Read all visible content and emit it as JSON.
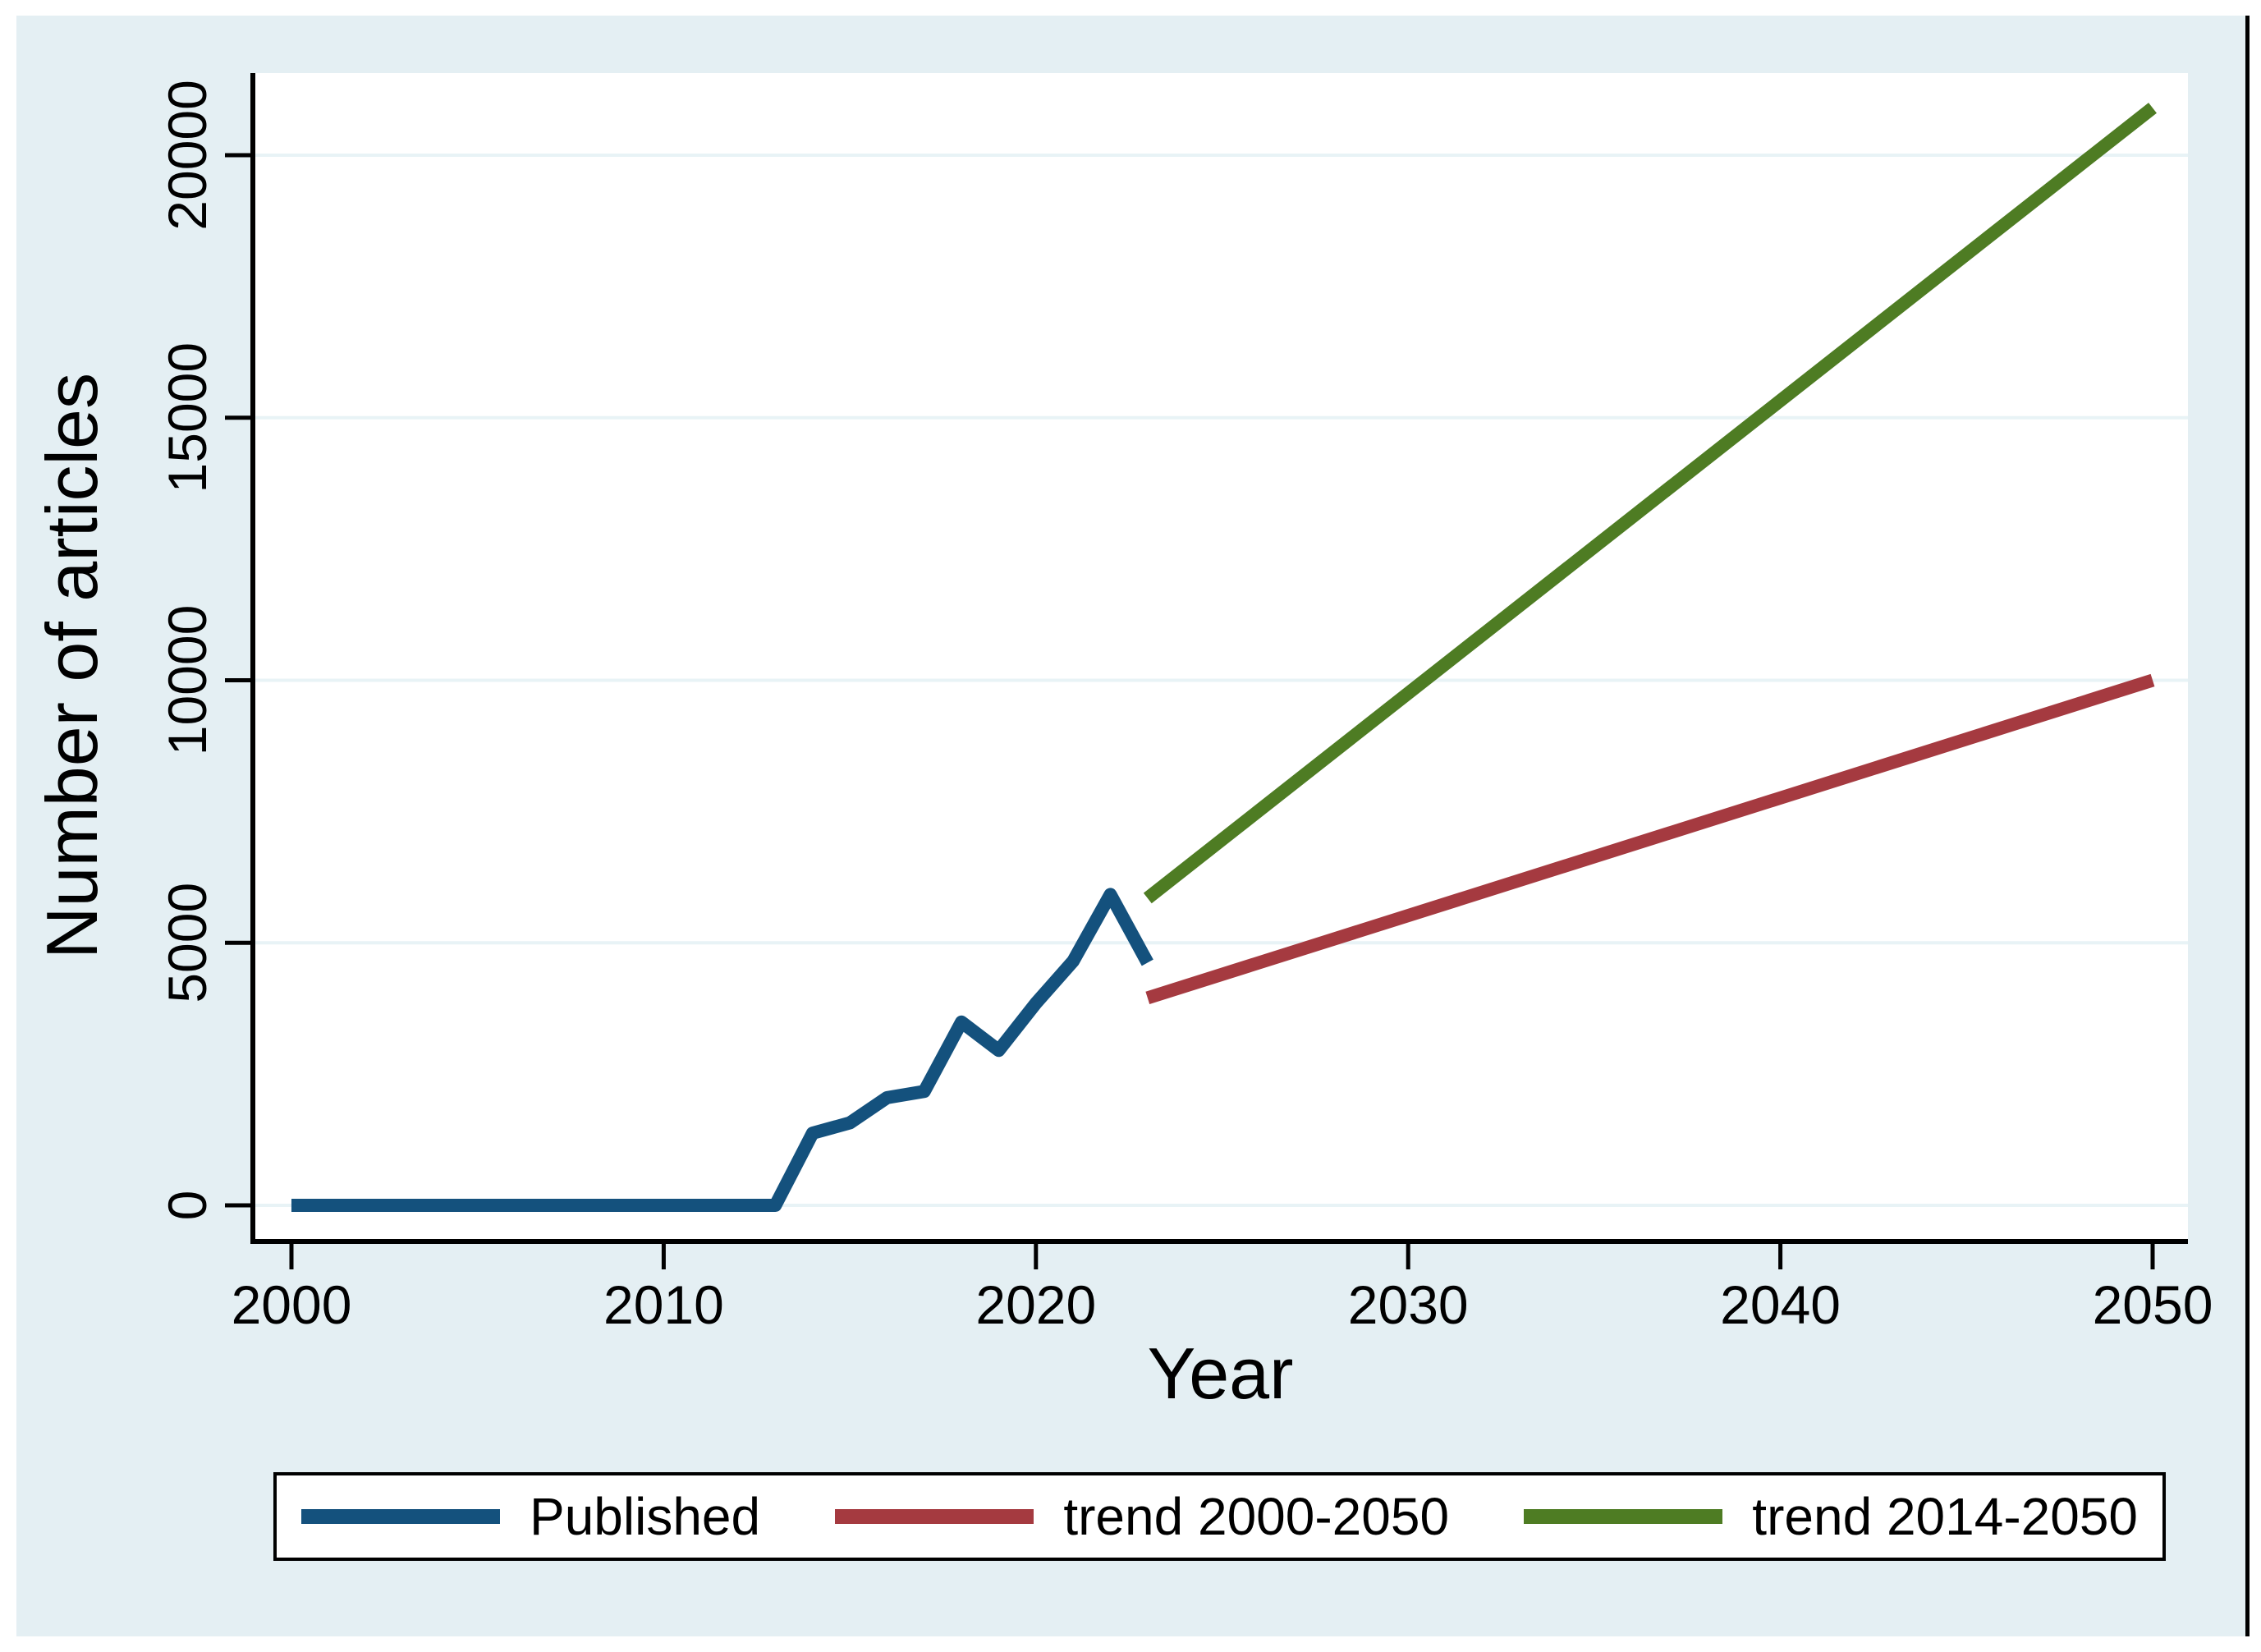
{
  "figure": {
    "background_color": "#e4eff3",
    "plot_background_color": "#ffffff",
    "gridline_color": "#e8f3f6",
    "axis_color": "#000000",
    "text_color": "#000000"
  },
  "chart_data": {
    "type": "line",
    "title": "",
    "xlabel": "Year",
    "ylabel": "Number of articles",
    "x_ticks": [
      2000,
      2010,
      2020,
      2030,
      2040,
      2050
    ],
    "y_ticks": [
      0,
      5000,
      10000,
      15000,
      20000
    ],
    "xlim": [
      1999,
      2051
    ],
    "ylim": [
      -700,
      21550
    ],
    "grid": "horizontal-only",
    "legend_position": "bottom-outside",
    "series": [
      {
        "name": "Published",
        "color": "#14517d",
        "x": [
          2000,
          2001,
          2002,
          2003,
          2004,
          2005,
          2006,
          2007,
          2008,
          2009,
          2010,
          2011,
          2012,
          2013,
          2014,
          2015,
          2016,
          2017,
          2018,
          2019,
          2020,
          2021,
          2022,
          2023
        ],
        "y": [
          0,
          0,
          0,
          0,
          0,
          0,
          0,
          0,
          0,
          0,
          0,
          0,
          0,
          0,
          1375,
          1570,
          2050,
          2170,
          3490,
          2950,
          3850,
          4650,
          5920,
          4620
        ]
      },
      {
        "name": "trend 2000-2050",
        "color": "#a53a40",
        "x": [
          2023,
          2050
        ],
        "y": [
          3950,
          10000
        ]
      },
      {
        "name": "trend 2014-2050",
        "color": "#4e7c23",
        "x": [
          2023,
          2050
        ],
        "y": [
          5850,
          20900
        ]
      }
    ]
  },
  "legend": {
    "items": [
      {
        "label": "Published",
        "color": "#14517d"
      },
      {
        "label": "trend 2000-2050",
        "color": "#a53a40"
      },
      {
        "label": "trend 2014-2050",
        "color": "#4e7c23"
      }
    ]
  }
}
